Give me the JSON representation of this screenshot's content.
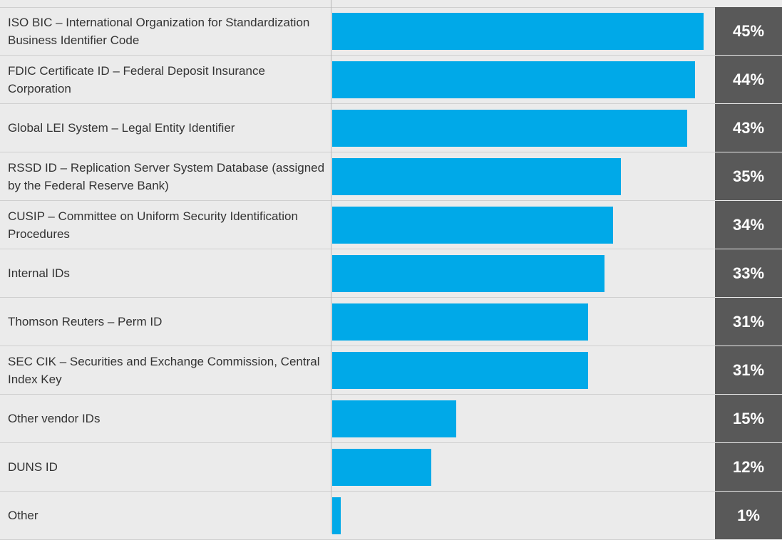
{
  "chart_data": {
    "type": "bar",
    "orientation": "horizontal",
    "color": "#00a9e8",
    "categories": [
      "ISO BIC – International Organization for Standardization Business Identifier Code",
      "FDIC Certificate ID – Federal Deposit Insurance Corporation",
      "Global LEI System – Legal Entity Identifier",
      "RSSD ID – Replication Server System Database (assigned by the Federal Reserve Bank)",
      "CUSIP – Committee on Uniform Security Identification Procedures",
      "Internal IDs",
      "Thomson Reuters – Perm ID",
      "SEC CIK – Securities and Exchange Commission, Central Index Key",
      "Other vendor IDs",
      "DUNS ID",
      "Other"
    ],
    "values": [
      45,
      44,
      43,
      35,
      34,
      33,
      31,
      31,
      15,
      12,
      1
    ],
    "value_labels": [
      "45%",
      "44%",
      "43%",
      "35%",
      "34%",
      "33%",
      "31%",
      "31%",
      "15%",
      "12%",
      "1%"
    ]
  }
}
